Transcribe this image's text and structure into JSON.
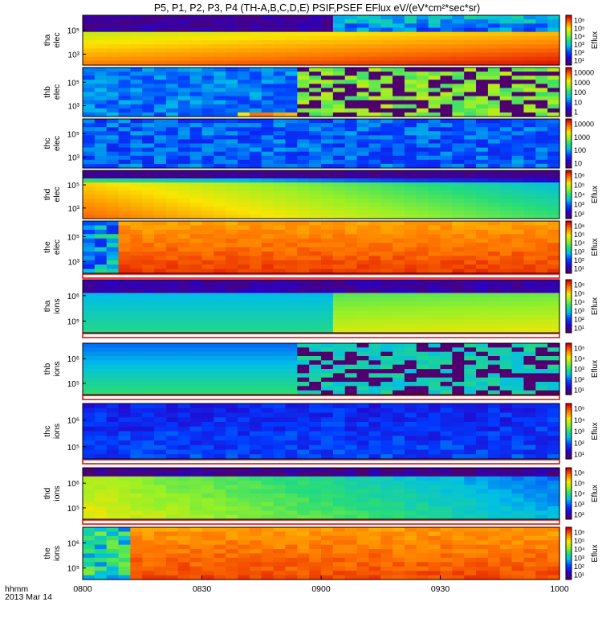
{
  "title": "P5, P1, P2, P3, P4 (TH-A,B,C,D,E) PSIF,PSEF EFlux eV/(eV*cm²*sec*sr)",
  "time_axis": {
    "ticks": [
      "0800",
      "0830",
      "0900",
      "0930",
      "1000"
    ],
    "label_lines": [
      "hhmm",
      "2013 Mar 14"
    ]
  },
  "panels": [
    {
      "id": "tha-elec",
      "label": [
        "tha",
        "elec"
      ],
      "yticks": [
        "10⁵",
        "10³"
      ],
      "cbar_label": "Eflux",
      "cbar_ticks": [
        "10⁶",
        "10⁵",
        "10⁴",
        "10³",
        "10²",
        "10¹"
      ]
    },
    {
      "id": "thb-elec",
      "label": [
        "thb",
        "elec"
      ],
      "yticks": [
        "10⁵",
        "10³"
      ],
      "cbar_label": "",
      "cbar_ticks": [
        "10000",
        "1000",
        "100",
        "10",
        "1"
      ]
    },
    {
      "id": "thc-elec",
      "label": [
        "thc",
        "elec"
      ],
      "yticks": [
        "10⁵",
        "10³"
      ],
      "cbar_label": "",
      "cbar_ticks": [
        "10000",
        "1000",
        "100",
        "10"
      ]
    },
    {
      "id": "thd-elec",
      "label": [
        "thd",
        "elec"
      ],
      "yticks": [
        "10⁵",
        "10³"
      ],
      "cbar_label": "Eflux",
      "cbar_ticks": [
        "10⁶",
        "10⁵",
        "10⁴",
        "10³",
        "10²"
      ]
    },
    {
      "id": "the-elec",
      "label": [
        "the",
        "elec"
      ],
      "yticks": [
        "10⁵",
        "10³"
      ],
      "cbar_label": "Eflux",
      "cbar_ticks": [
        "10⁶",
        "10⁵",
        "10⁴",
        "10³",
        "10²",
        "10¹"
      ]
    },
    {
      "id": "tha-ions",
      "label": [
        "tha",
        "ions"
      ],
      "yticks": [
        "10⁶",
        "10⁵"
      ],
      "cbar_label": "Eflux",
      "cbar_ticks": [
        "10⁶",
        "10⁵",
        "10⁴",
        "10³",
        "10²",
        "10¹"
      ]
    },
    {
      "id": "thb-ions",
      "label": [
        "thb",
        "ions"
      ],
      "yticks": [
        "10⁶",
        "10⁵"
      ],
      "cbar_label": "Eflux",
      "cbar_ticks": [
        "10⁵",
        "10⁴",
        "10³",
        "10²",
        "10¹"
      ]
    },
    {
      "id": "thc-ions",
      "label": [
        "thc",
        "ions"
      ],
      "yticks": [
        "10⁶",
        "10⁵"
      ],
      "cbar_label": "Eflux",
      "cbar_ticks": [
        "10⁵",
        "10⁴",
        "10³",
        "10²",
        "10¹"
      ]
    },
    {
      "id": "thd-ions",
      "label": [
        "thd",
        "ions"
      ],
      "yticks": [
        "10⁶",
        "10⁵"
      ],
      "cbar_label": "Eflux",
      "cbar_ticks": [
        "10⁶",
        "10⁵",
        "10⁴",
        "10³",
        "10²"
      ]
    },
    {
      "id": "the-ions",
      "label": [
        "the",
        "ions"
      ],
      "yticks": [
        "10⁶",
        "10⁵"
      ],
      "cbar_label": "Eflux",
      "cbar_ticks": [
        "10⁶",
        "10⁵",
        "10⁴",
        "10³",
        "10²",
        "10¹"
      ]
    }
  ],
  "chart_data": {
    "type": "heatmap",
    "title": "P5, P1, P2, P3, P4 (TH-A,B,C,D,E) PSIF,PSEF EFlux eV/(eV*cm²*sec*sr)",
    "x": {
      "label": "hhmm 2013 Mar 14",
      "range": [
        "0800",
        "1000"
      ],
      "ticks": [
        "0800",
        "0830",
        "0900",
        "0930",
        "1000"
      ]
    },
    "colormap": "rainbow (purple low → red high)",
    "series": [
      {
        "name": "tha elec",
        "y_scale": "log",
        "z_scale": "log",
        "z_label": "Eflux"
      },
      {
        "name": "thb elec",
        "y_scale": "log",
        "z_scale": "log",
        "z_ticks": [
          10000,
          1000,
          100,
          10,
          1
        ]
      },
      {
        "name": "thc elec",
        "y_scale": "log",
        "z_scale": "log",
        "z_ticks": [
          10000,
          1000,
          100,
          10
        ]
      },
      {
        "name": "thd elec",
        "y_scale": "log",
        "z_scale": "log",
        "z_label": "Eflux"
      },
      {
        "name": "the elec",
        "y_scale": "log",
        "z_scale": "log",
        "z_label": "Eflux"
      },
      {
        "name": "tha ions",
        "y_scale": "log",
        "z_scale": "log",
        "z_label": "Eflux"
      },
      {
        "name": "thb ions",
        "y_scale": "log",
        "z_scale": "log",
        "z_label": "Eflux"
      },
      {
        "name": "thc ions",
        "y_scale": "log",
        "z_scale": "log",
        "z_label": "Eflux"
      },
      {
        "name": "thd ions",
        "y_scale": "log",
        "z_scale": "log",
        "z_label": "Eflux"
      },
      {
        "name": "the ions",
        "y_scale": "log",
        "z_scale": "log",
        "z_label": "Eflux"
      }
    ]
  }
}
